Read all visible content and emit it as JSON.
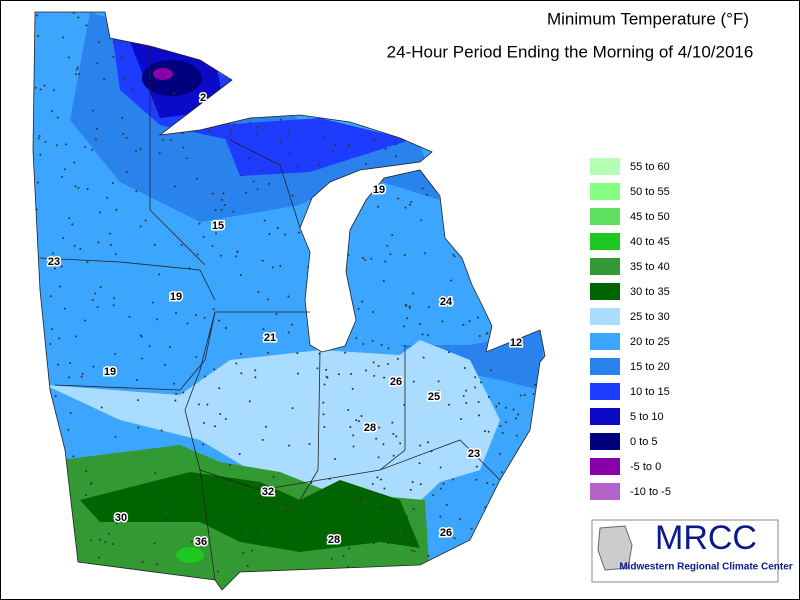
{
  "title": "Minimum Temperature (°F)",
  "subtitle": "24-Hour Period Ending the Morning of 4/10/2016",
  "legend": [
    {
      "label": "55 to 60",
      "color": "#b4ffb4"
    },
    {
      "label": "50 to 55",
      "color": "#84ff84"
    },
    {
      "label": "45 to 50",
      "color": "#5ee05e"
    },
    {
      "label": "40 to 45",
      "color": "#1ec81e"
    },
    {
      "label": "35 to 40",
      "color": "#339a33"
    },
    {
      "label": "30 to 35",
      "color": "#006400"
    },
    {
      "label": "25 to 30",
      "color": "#aadcff"
    },
    {
      "label": "20 to 25",
      "color": "#3ca5ff"
    },
    {
      "label": "15 to 20",
      "color": "#2a82ec"
    },
    {
      "label": "10 to 15",
      "color": "#1e3cff"
    },
    {
      "label": "5 to 10",
      "color": "#0a0ac8"
    },
    {
      "label": "0 to 5",
      "color": "#00007e"
    },
    {
      "label": "-5 to 0",
      "color": "#8a00a8"
    },
    {
      "label": "-10 to -5",
      "color": "#b464c8"
    }
  ],
  "station_labels": [
    2,
    15,
    23,
    19,
    19,
    24,
    21,
    12,
    19,
    26,
    25,
    28,
    23,
    32,
    30,
    36,
    28,
    26
  ],
  "logo": {
    "name": "MRCC",
    "full_name": "Midwestern Regional Climate Center"
  }
}
